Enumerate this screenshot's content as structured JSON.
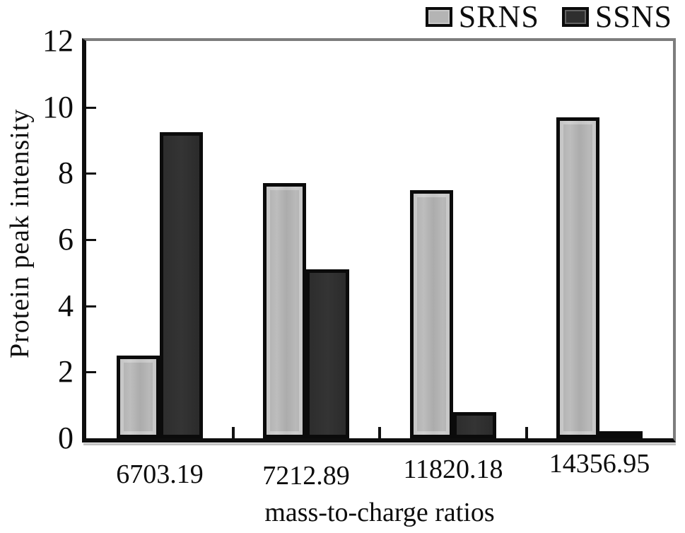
{
  "figure": {
    "background": "#ffffff",
    "text_color": "#0d0d0d",
    "frame_dark": "#0e0e0e",
    "frame_light": "#7d7d7d"
  },
  "legend": {
    "items": [
      {
        "label": "SRNS",
        "swatch": "srns-swatch",
        "color": "#b4b4b4"
      },
      {
        "label": "SSNS",
        "swatch": "ssns-swatch",
        "color": "#2e2e2e"
      }
    ]
  },
  "chart_data": {
    "type": "bar",
    "title": "",
    "categories": [
      "6703.19",
      "7212.89",
      "11820.18",
      "14356.95"
    ],
    "series": [
      {
        "name": "SRNS",
        "color": "#b4b4b4",
        "values": [
          2.5,
          7.7,
          7.5,
          9.7
        ]
      },
      {
        "name": "SSNS",
        "color": "#2e2e2e",
        "values": [
          9.25,
          5.1,
          0.8,
          0.2
        ]
      }
    ],
    "xlabel": "mass-to-charge ratios",
    "ylabel": "Protein peak intensity",
    "ylim": [
      0,
      12
    ],
    "yticks": [
      0,
      2,
      4,
      6,
      8,
      10,
      12
    ],
    "ytick_step": 2,
    "grid": false,
    "legend_position": "top-right",
    "bar_outline": "#0b0b0b"
  }
}
